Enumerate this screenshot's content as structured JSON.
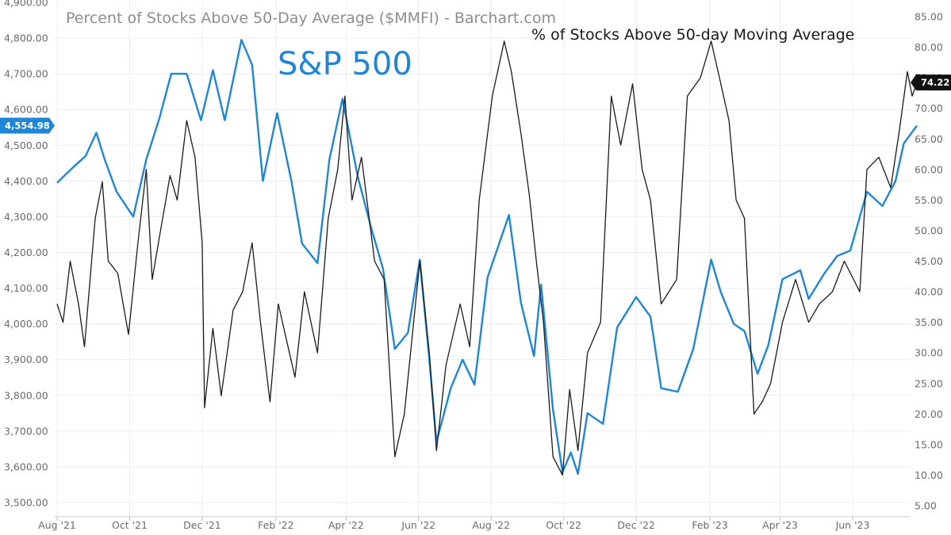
{
  "chart_data": {
    "type": "line",
    "title": "Percent of Stocks Above 50-Day Average ($MMFI) - Barchart.com",
    "annotations": [
      "S&P 500",
      "% of Stocks Above 50-day Moving Average"
    ],
    "x_tick_labels": [
      "Aug '21",
      "Oct '21",
      "Dec '21",
      "Feb '22",
      "Apr '22",
      "Jun '22",
      "Aug '22",
      "Oct '22",
      "Dec '22",
      "Feb '23",
      "Apr '23",
      "Jun '23"
    ],
    "left_axis": {
      "ylim": [
        3500,
        4900
      ],
      "tick_labels": [
        "3,500.00",
        "3,600.00",
        "3,700.00",
        "3,800.00",
        "3,900.00",
        "4,000.00",
        "4,100.00",
        "4,200.00",
        "4,300.00",
        "4,400.00",
        "4,500.00",
        "4,600.00",
        "4,700.00",
        "4,800.00",
        "4,900.00"
      ],
      "last_value_label": "4,554.98"
    },
    "right_axis": {
      "ylim": [
        5,
        86
      ],
      "tick_labels": [
        "5.00",
        "10.00",
        "15.00",
        "20.00",
        "25.00",
        "30.00",
        "35.00",
        "40.00",
        "45.00",
        "50.00",
        "55.00",
        "60.00",
        "65.00",
        "70.00",
        "75.00",
        "80.00",
        "85.00"
      ],
      "last_value_label": "74.22"
    },
    "grid": true,
    "series": [
      {
        "name": "S&P 500",
        "axis": "left",
        "color": "#1f86d6",
        "points": [
          [
            "2021-08-01",
            4395
          ],
          [
            "2021-08-15",
            4440
          ],
          [
            "2021-08-25",
            4470
          ],
          [
            "2021-09-03",
            4535
          ],
          [
            "2021-09-10",
            4460
          ],
          [
            "2021-09-20",
            4370
          ],
          [
            "2021-10-04",
            4300
          ],
          [
            "2021-10-15",
            4460
          ],
          [
            "2021-10-26",
            4575
          ],
          [
            "2021-11-05",
            4700
          ],
          [
            "2021-11-18",
            4700
          ],
          [
            "2021-11-30",
            4570
          ],
          [
            "2021-12-10",
            4710
          ],
          [
            "2021-12-20",
            4570
          ],
          [
            "2022-01-03",
            4795
          ],
          [
            "2022-01-12",
            4725
          ],
          [
            "2022-01-21",
            4400
          ],
          [
            "2022-02-02",
            4590
          ],
          [
            "2022-02-14",
            4400
          ],
          [
            "2022-02-23",
            4225
          ],
          [
            "2022-03-08",
            4170
          ],
          [
            "2022-03-18",
            4460
          ],
          [
            "2022-03-29",
            4630
          ],
          [
            "2022-04-11",
            4410
          ],
          [
            "2022-04-22",
            4270
          ],
          [
            "2022-05-02",
            4155
          ],
          [
            "2022-05-12",
            3930
          ],
          [
            "2022-05-23",
            3975
          ],
          [
            "2022-06-02",
            4180
          ],
          [
            "2022-06-10",
            3900
          ],
          [
            "2022-06-16",
            3670
          ],
          [
            "2022-06-28",
            3820
          ],
          [
            "2022-07-08",
            3900
          ],
          [
            "2022-07-18",
            3830
          ],
          [
            "2022-07-29",
            4130
          ],
          [
            "2022-08-16",
            4305
          ],
          [
            "2022-08-26",
            4060
          ],
          [
            "2022-09-06",
            3910
          ],
          [
            "2022-09-12",
            4110
          ],
          [
            "2022-09-22",
            3760
          ],
          [
            "2022-09-30",
            3585
          ],
          [
            "2022-10-07",
            3640
          ],
          [
            "2022-10-13",
            3580
          ],
          [
            "2022-10-21",
            3750
          ],
          [
            "2022-11-03",
            3720
          ],
          [
            "2022-11-15",
            3990
          ],
          [
            "2022-12-01",
            4075
          ],
          [
            "2022-12-13",
            4020
          ],
          [
            "2022-12-22",
            3820
          ],
          [
            "2023-01-05",
            3810
          ],
          [
            "2023-01-18",
            3930
          ],
          [
            "2023-02-02",
            4180
          ],
          [
            "2023-02-10",
            4090
          ],
          [
            "2023-02-21",
            4000
          ],
          [
            "2023-03-02",
            3980
          ],
          [
            "2023-03-13",
            3860
          ],
          [
            "2023-03-22",
            3940
          ],
          [
            "2023-04-03",
            4125
          ],
          [
            "2023-04-18",
            4150
          ],
          [
            "2023-04-25",
            4070
          ],
          [
            "2023-05-08",
            4140
          ],
          [
            "2023-05-19",
            4190
          ],
          [
            "2023-05-30",
            4205
          ],
          [
            "2023-06-13",
            4370
          ],
          [
            "2023-06-26",
            4330
          ],
          [
            "2023-07-07",
            4400
          ],
          [
            "2023-07-14",
            4505
          ],
          [
            "2023-07-25",
            4554.98
          ]
        ]
      },
      {
        "name": "% of Stocks Above 50-day Moving Average",
        "axis": "right",
        "color": "#1a1a1a",
        "points": [
          [
            "2021-08-01",
            38
          ],
          [
            "2021-08-06",
            35
          ],
          [
            "2021-08-12",
            45
          ],
          [
            "2021-08-19",
            38
          ],
          [
            "2021-08-24",
            31
          ],
          [
            "2021-09-02",
            52
          ],
          [
            "2021-09-08",
            58
          ],
          [
            "2021-09-13",
            45
          ],
          [
            "2021-09-21",
            43
          ],
          [
            "2021-09-30",
            33
          ],
          [
            "2021-10-08",
            48
          ],
          [
            "2021-10-15",
            60
          ],
          [
            "2021-10-20",
            42
          ],
          [
            "2021-10-27",
            50
          ],
          [
            "2021-11-04",
            59
          ],
          [
            "2021-11-10",
            55
          ],
          [
            "2021-11-18",
            68
          ],
          [
            "2021-11-25",
            62
          ],
          [
            "2021-12-01",
            48
          ],
          [
            "2021-12-03",
            21
          ],
          [
            "2021-12-10",
            34
          ],
          [
            "2021-12-17",
            23
          ],
          [
            "2021-12-27",
            37
          ],
          [
            "2022-01-04",
            40
          ],
          [
            "2022-01-12",
            48
          ],
          [
            "2022-01-19",
            35
          ],
          [
            "2022-01-27",
            22
          ],
          [
            "2022-02-03",
            38
          ],
          [
            "2022-02-10",
            32
          ],
          [
            "2022-02-17",
            26
          ],
          [
            "2022-02-25",
            40
          ],
          [
            "2022-03-08",
            30
          ],
          [
            "2022-03-17",
            52
          ],
          [
            "2022-03-25",
            60
          ],
          [
            "2022-03-31",
            72
          ],
          [
            "2022-04-06",
            55
          ],
          [
            "2022-04-14",
            62
          ],
          [
            "2022-04-25",
            45
          ],
          [
            "2022-05-03",
            42
          ],
          [
            "2022-05-12",
            13
          ],
          [
            "2022-05-20",
            20
          ],
          [
            "2022-06-02",
            45
          ],
          [
            "2022-06-10",
            30
          ],
          [
            "2022-06-16",
            14
          ],
          [
            "2022-06-24",
            28
          ],
          [
            "2022-07-06",
            38
          ],
          [
            "2022-07-14",
            31
          ],
          [
            "2022-07-22",
            55
          ],
          [
            "2022-08-02",
            72
          ],
          [
            "2022-08-12",
            81
          ],
          [
            "2022-08-18",
            76
          ],
          [
            "2022-08-26",
            66
          ],
          [
            "2022-09-02",
            56
          ],
          [
            "2022-09-08",
            45
          ],
          [
            "2022-09-14",
            35
          ],
          [
            "2022-09-22",
            13
          ],
          [
            "2022-09-30",
            10
          ],
          [
            "2022-10-06",
            24
          ],
          [
            "2022-10-13",
            14
          ],
          [
            "2022-10-21",
            30
          ],
          [
            "2022-11-01",
            35
          ],
          [
            "2022-11-10",
            72
          ],
          [
            "2022-11-18",
            64
          ],
          [
            "2022-11-28",
            74
          ],
          [
            "2022-12-06",
            60
          ],
          [
            "2022-12-13",
            55
          ],
          [
            "2022-12-22",
            38
          ],
          [
            "2023-01-04",
            42
          ],
          [
            "2023-01-13",
            72
          ],
          [
            "2023-01-24",
            75
          ],
          [
            "2023-02-02",
            81
          ],
          [
            "2023-02-09",
            75
          ],
          [
            "2023-02-17",
            68
          ],
          [
            "2023-02-23",
            55
          ],
          [
            "2023-03-02",
            52
          ],
          [
            "2023-03-10",
            20
          ],
          [
            "2023-03-17",
            22
          ],
          [
            "2023-03-24",
            25
          ],
          [
            "2023-04-03",
            35
          ],
          [
            "2023-04-14",
            42
          ],
          [
            "2023-04-25",
            35
          ],
          [
            "2023-05-04",
            38
          ],
          [
            "2023-05-15",
            40
          ],
          [
            "2023-05-25",
            45
          ],
          [
            "2023-06-07",
            40
          ],
          [
            "2023-06-13",
            60
          ],
          [
            "2023-06-23",
            62
          ],
          [
            "2023-07-03",
            57
          ],
          [
            "2023-07-10",
            66
          ],
          [
            "2023-07-17",
            76
          ],
          [
            "2023-07-21",
            72
          ],
          [
            "2023-07-25",
            74.22
          ]
        ]
      }
    ]
  }
}
